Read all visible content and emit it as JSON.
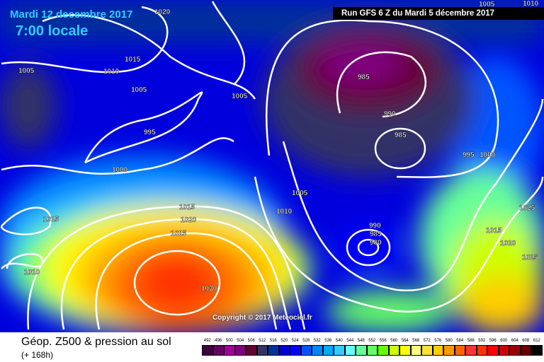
{
  "header": {
    "date": "Mardi 12 decembre 2017",
    "time": "7:00 locale",
    "run": "Run GFS 6 Z du Mardi 5 décembre 2017"
  },
  "copyright": "Copyright © 2017 Meteociel.fr",
  "footer": {
    "title": "Géop. Z500 & pression au sol",
    "lead": "(+ 168h)"
  },
  "legend": {
    "values": [
      "492",
      "496",
      "500",
      "504",
      "508",
      "512",
      "516",
      "520",
      "524",
      "528",
      "532",
      "536",
      "540",
      "544",
      "548",
      "552",
      "556",
      "560",
      "564",
      "568",
      "572",
      "576",
      "580",
      "584",
      "588",
      "592",
      "596",
      "600",
      "604",
      "608",
      "612"
    ],
    "colors": [
      "#400040",
      "#660066",
      "#a000a0",
      "#800080",
      "#660033",
      "#333366",
      "#003399",
      "#0000cc",
      "#0000ff",
      "#0055ff",
      "#0088ff",
      "#00aaff",
      "#33ccff",
      "#66ffff",
      "#66ff99",
      "#66ff66",
      "#66ff00",
      "#ccff00",
      "#ffff00",
      "#ffff80",
      "#ffe040",
      "#ffcc00",
      "#ff9900",
      "#ff6600",
      "#ff3333",
      "#ff3300",
      "#ff0000",
      "#cc0000",
      "#990000",
      "#660000",
      "#000000"
    ]
  },
  "isobars": [
    "1020",
    "1005",
    "1010",
    "1015",
    "1005",
    "1005",
    "995",
    "1000",
    "1015",
    "1010",
    "1015",
    "1020",
    "1025",
    "1030",
    "1005",
    "1010",
    "985",
    "990",
    "985",
    "995",
    "1000",
    "990",
    "985",
    "980",
    "1025",
    "1015",
    "1020",
    "1025",
    "1005",
    "1010"
  ]
}
